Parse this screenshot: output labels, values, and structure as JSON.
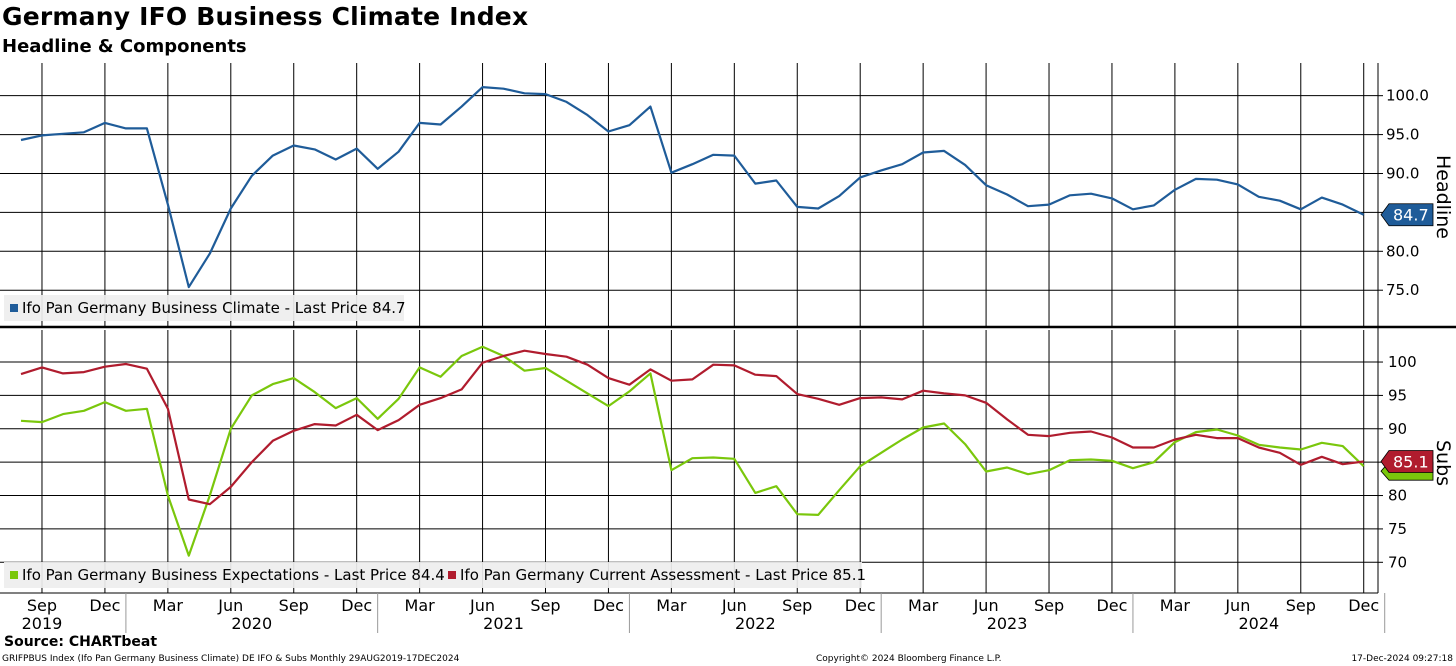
{
  "header": {
    "title": "Germany IFO Business Climate Index",
    "subtitle": "Headline & Components"
  },
  "footer": {
    "source": "Source: CHARTbeat",
    "ticker_info": "GRIFPBUS Index (Ifo Pan Germany Business Climate) DE IFO & Subs  Monthly 29AUG2019-17DEC2024",
    "copyright": "Copyright© 2024 Bloomberg Finance L.P.",
    "timestamp": "17-Dec-2024 09:27:18"
  },
  "colors": {
    "headline": "#1f5c99",
    "expectations": "#7ac70c",
    "current": "#b01c2e",
    "grid": "#000000"
  },
  "chart_data": [
    {
      "type": "line",
      "panel": "top",
      "ylabel": "Headline",
      "ylim": [
        70.4,
        104.2
      ],
      "yticks": [
        75,
        80,
        85,
        90,
        95,
        100
      ],
      "ytick_labels": [
        "75.0",
        "80.0",
        "85.0",
        "90.0",
        "95.0",
        "100.0"
      ],
      "grid": true,
      "legend": "bottom-left",
      "series": [
        {
          "name": "Ifo Pan Germany Business Climate - Last Price 84.7",
          "last_label": "84.7",
          "start": "2019-08",
          "values": [
            94.3,
            94.9,
            95.1,
            95.3,
            96.5,
            95.8,
            95.8,
            86.0,
            75.4,
            79.7,
            85.5,
            89.7,
            92.3,
            93.6,
            93.1,
            91.8,
            93.2,
            90.6,
            92.8,
            96.5,
            96.3,
            98.6,
            101.1,
            100.9,
            100.3,
            100.2,
            99.2,
            97.5,
            95.4,
            96.2,
            98.6,
            90.1,
            91.2,
            92.4,
            92.3,
            88.7,
            89.1,
            85.7,
            85.5,
            87.1,
            89.5,
            90.4,
            91.2,
            92.7,
            92.9,
            91.1,
            88.5,
            87.3,
            85.8,
            86.0,
            87.2,
            87.4,
            86.8,
            85.4,
            85.9,
            87.9,
            89.3,
            89.2,
            88.6,
            87.0,
            86.5,
            85.4,
            86.9,
            86.0,
            84.7
          ]
        }
      ]
    },
    {
      "type": "line",
      "panel": "bottom",
      "ylabel": "Subs",
      "ylim": [
        65.4,
        104.8
      ],
      "yticks": [
        70,
        75,
        80,
        85,
        90,
        95,
        100
      ],
      "ytick_labels": [
        "70",
        "75",
        "80",
        "85",
        "90",
        "95",
        "100"
      ],
      "grid": true,
      "legend": "bottom-left",
      "x_month_labels": [
        "Sep",
        "Dec",
        "Mar",
        "Jun",
        "Sep",
        "Dec",
        "Mar",
        "Jun",
        "Sep",
        "Dec",
        "Mar",
        "Jun",
        "Sep",
        "Dec",
        "Mar",
        "Jun",
        "Sep",
        "Dec",
        "Mar",
        "Jun",
        "Sep",
        "Dec"
      ],
      "x_year_labels": [
        "2019",
        "2020",
        "2021",
        "2022",
        "2023",
        "2024"
      ],
      "series": [
        {
          "name": "Ifo Pan Germany Business Expectations - Last Price 84.4",
          "last_label": "84.4",
          "start": "2019-08",
          "values": [
            91.2,
            91.0,
            92.2,
            92.7,
            94.0,
            92.7,
            93.0,
            80.0,
            71.0,
            80.0,
            90.0,
            95.0,
            96.7,
            97.6,
            95.5,
            93.1,
            94.6,
            91.5,
            94.5,
            99.2,
            97.8,
            100.9,
            102.3,
            100.9,
            98.7,
            99.1,
            97.2,
            95.3,
            93.4,
            95.6,
            98.3,
            83.8,
            85.6,
            85.7,
            85.5,
            80.4,
            81.4,
            77.2,
            77.1,
            80.8,
            84.4,
            86.4,
            88.4,
            90.2,
            90.8,
            87.7,
            83.6,
            84.2,
            83.2,
            83.8,
            85.3,
            85.4,
            85.2,
            84.1,
            85.0,
            88.0,
            89.5,
            89.9,
            89.0,
            87.6,
            87.2,
            86.9,
            87.9,
            87.4,
            84.4
          ]
        },
        {
          "name": "Ifo Pan Germany Current Assessment - Last Price 85.1",
          "last_label": "85.1",
          "start": "2019-08",
          "values": [
            98.2,
            99.2,
            98.3,
            98.5,
            99.3,
            99.7,
            99.0,
            93.0,
            79.4,
            78.7,
            81.3,
            85.0,
            88.2,
            89.7,
            90.7,
            90.5,
            92.1,
            89.8,
            91.3,
            93.6,
            94.6,
            95.9,
            99.9,
            100.9,
            101.7,
            101.2,
            100.8,
            99.6,
            97.6,
            96.6,
            98.9,
            97.2,
            97.4,
            99.6,
            99.5,
            98.1,
            97.9,
            95.2,
            94.5,
            93.6,
            94.6,
            94.7,
            94.4,
            95.7,
            95.3,
            95.0,
            93.9,
            91.4,
            89.1,
            88.9,
            89.4,
            89.6,
            88.7,
            87.2,
            87.2,
            88.4,
            89.1,
            88.6,
            88.6,
            87.2,
            86.4,
            84.6,
            85.8,
            84.7,
            85.1
          ]
        }
      ]
    }
  ]
}
